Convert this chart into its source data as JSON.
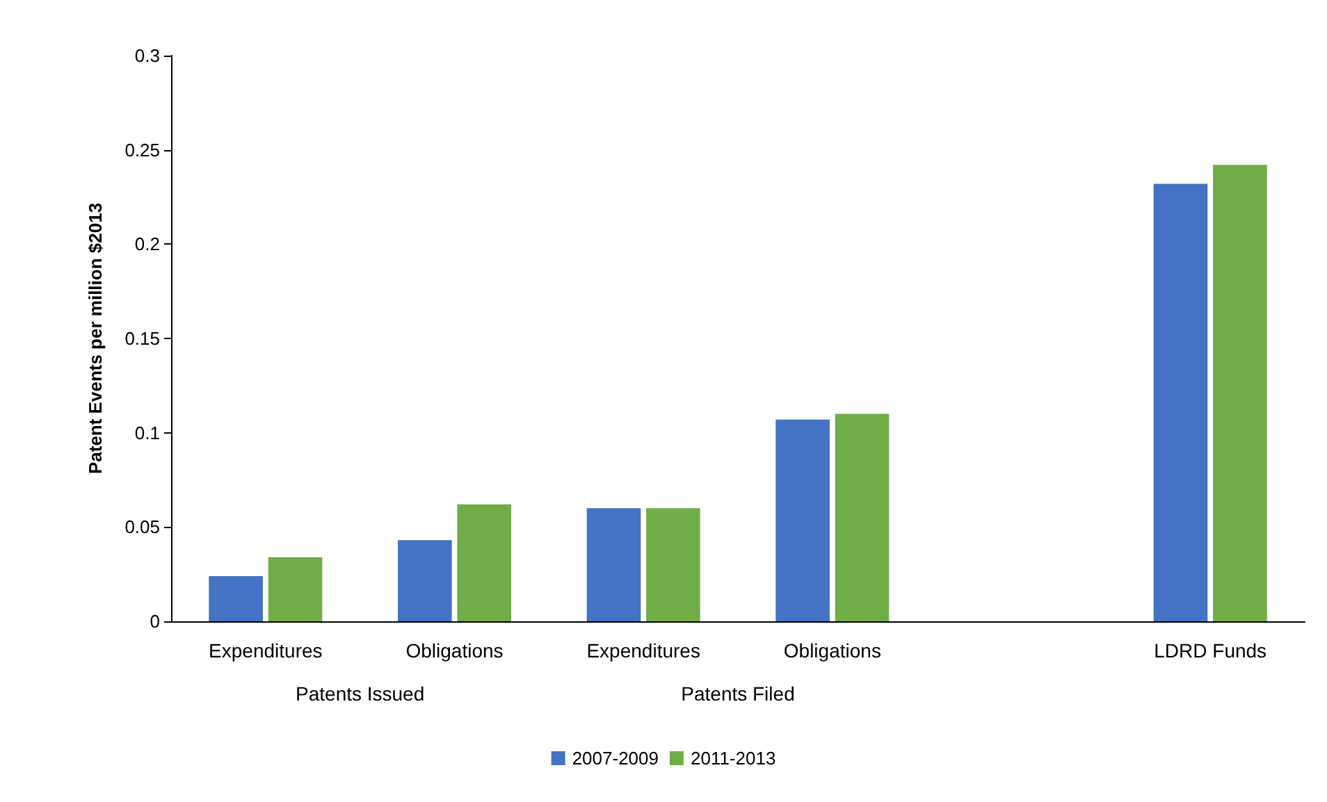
{
  "chart_data": {
    "type": "bar",
    "ylabel": "Patent Events per million $2013",
    "categories": [
      "Expenditures",
      "Obligations",
      "Expenditures",
      "Obligations",
      null,
      "LDRD Funds"
    ],
    "series": [
      {
        "name": "2007-2009",
        "color": "#4472c4",
        "values": [
          0.024,
          0.043,
          0.06,
          0.107,
          null,
          0.232
        ]
      },
      {
        "name": "2011-2013",
        "color": "#70ad47",
        "values": [
          0.034,
          0.062,
          0.06,
          0.11,
          null,
          0.242
        ]
      }
    ],
    "ylim": [
      0,
      0.3
    ],
    "yticks": [
      0,
      0.05,
      0.1,
      0.15,
      0.2,
      0.25,
      0.3
    ],
    "annotations": [
      "Patents Issued",
      "Patents Filed"
    ],
    "grid": false,
    "legend": "bottom"
  }
}
